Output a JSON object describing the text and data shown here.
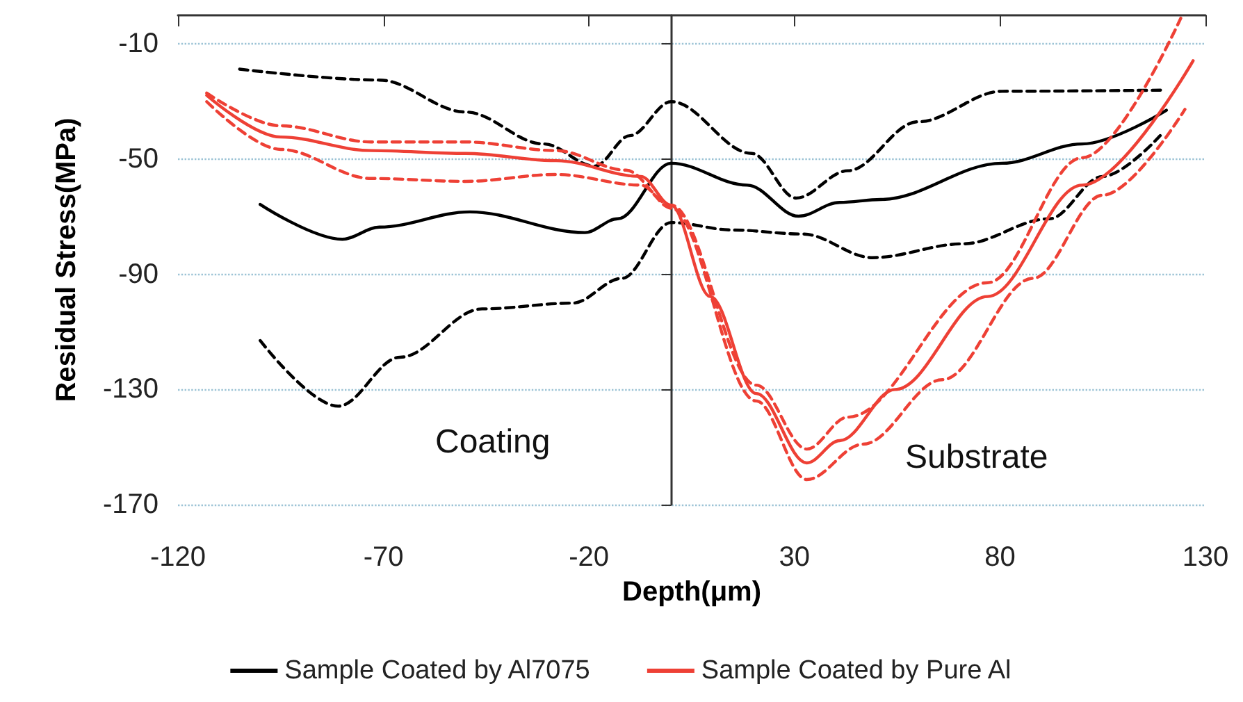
{
  "chart_data": {
    "type": "line",
    "xlabel": "Depth(μm)",
    "ylabel": "Residual Stress(MPa)",
    "xlim": [
      -120,
      130
    ],
    "xticks": [
      -120,
      -70,
      -20,
      30,
      80,
      130
    ],
    "ylim": [
      -170,
      0
    ],
    "yticks": [
      -170,
      -130,
      -90,
      -50,
      -10
    ],
    "grid": "y",
    "legend": "bottom",
    "marker": "none",
    "annotations": [
      "Coating",
      "Substrate"
    ],
    "series": [
      {
        "name": "Sample Coated by Al7075",
        "color": "#000000",
        "line_style": "solid",
        "x": [
          -100,
          -80,
          -71,
          -49,
          -21,
          -13,
          0,
          18.5,
          31,
          41,
          51,
          80.5,
          100,
          120.5
        ],
        "values": [
          -65.7,
          -77.8,
          -73.6,
          -68.3,
          -75.5,
          -70.7,
          -51.4,
          -59,
          -69.8,
          -65,
          -64,
          -51.4,
          -44.7,
          -33
        ]
      },
      {
        "color": "#000000",
        "line_style": "dashed",
        "x": [
          -105,
          -71,
          -50,
          -31,
          -18.6,
          -10,
          0,
          19.6,
          30.4,
          43,
          60,
          80.5,
          120
        ],
        "values": [
          -18.7,
          -22.5,
          -33.6,
          -44.7,
          -52.4,
          -41.8,
          -30,
          -48,
          -63.5,
          -54,
          -37,
          -26.4,
          -26
        ]
      },
      {
        "color": "#000000",
        "line_style": "dashed",
        "x": [
          -100,
          -81,
          -66,
          -46,
          -24,
          -12,
          0,
          15,
          32,
          49,
          71,
          92,
          105,
          119
        ],
        "values": [
          -113,
          -135.8,
          -118.8,
          -102,
          -100,
          -91.4,
          -72,
          -74.6,
          -76,
          -84.2,
          -79.4,
          -70.7,
          -56,
          -41.8
        ]
      },
      {
        "name": "Sample Coated by Pure Al",
        "color": "#ee4035",
        "line_style": "solid",
        "x": [
          -113,
          -95,
          -73,
          -50,
          -28,
          -7.4,
          0,
          9.5,
          20.7,
          33,
          41,
          54.5,
          77,
          100,
          127
        ],
        "values": [
          -27.8,
          -42.3,
          -47,
          -48,
          -50.5,
          -56,
          -66,
          -97.7,
          -131.4,
          -155.5,
          -147.8,
          -130,
          -97.7,
          -59,
          -15.8
        ]
      },
      {
        "color": "#ee4035",
        "line_style": "dashed",
        "x": [
          -113,
          -95,
          -73,
          -50,
          -28,
          -11,
          0,
          20.7,
          33,
          43,
          77,
          100,
          124
        ],
        "values": [
          -27,
          -38.4,
          -44,
          -44,
          -47,
          -53.8,
          -66,
          -128.5,
          -150.7,
          -139.6,
          -92.9,
          -49.5,
          -1
        ]
      },
      {
        "color": "#ee4035",
        "line_style": "dashed",
        "x": [
          -113,
          -95,
          -73,
          -50,
          -28,
          -7.4,
          0,
          20.7,
          33,
          46.7,
          66,
          88,
          105,
          125
        ],
        "values": [
          -30,
          -46.6,
          -56.7,
          -57.7,
          -55.3,
          -59,
          -67,
          -134,
          -161.3,
          -149,
          -126.6,
          -91.4,
          -62.5,
          -32.7
        ]
      }
    ]
  }
}
